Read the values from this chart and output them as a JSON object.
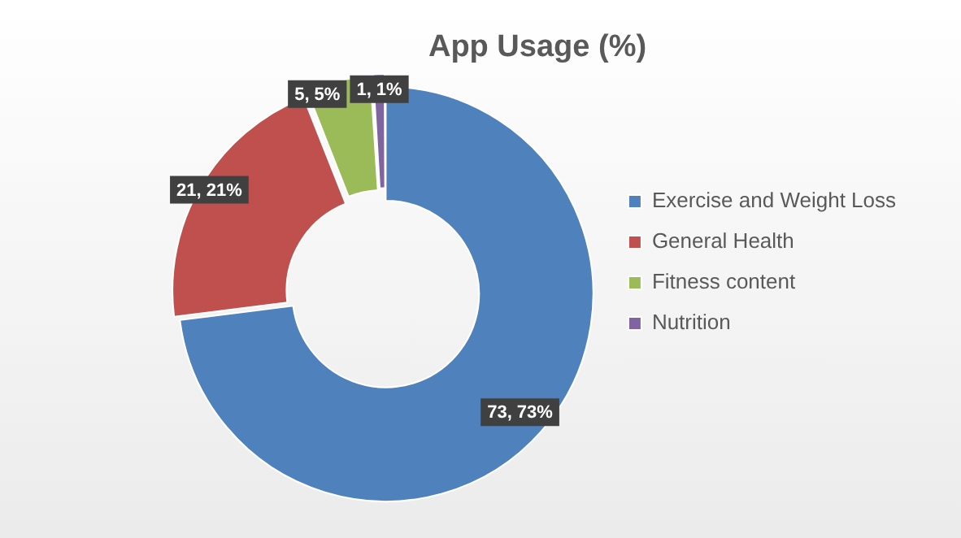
{
  "chart_data": {
    "type": "donut",
    "title": "App Usage (%)",
    "categories": [
      "Exercise and Weight Loss",
      "General Health",
      "Fitness content",
      "Nutrition"
    ],
    "values": [
      73,
      21,
      5,
      1
    ],
    "colors": [
      "#4f81bd",
      "#c0504d",
      "#9bbb59",
      "#8064a2"
    ],
    "value_labels": [
      "73, 73%",
      "21, 21%",
      "5, 5%",
      "1, 1%"
    ],
    "legend": "right"
  }
}
